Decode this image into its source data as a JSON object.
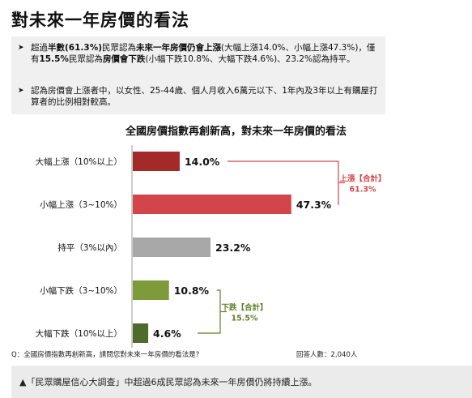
{
  "title": "對未來一年房價的看法",
  "summary": {
    "b1": {
      "arrow": "➤",
      "p1": "超過",
      "k1": "半數(61.3%)",
      "p2": "民眾認為",
      "k2": "未來一年房價仍會上漲",
      "p3": "(大幅上漲14.0%、小幅上漲47.3%)，僅有",
      "k3": "15.5%",
      "p4": "民眾認為",
      "k4": "房價會下跌",
      "p5": "(小幅下跌10.8%、大幅下跌4.6%)、23.2%認為持平。"
    },
    "b2": {
      "arrow": "➤",
      "text": "認為房價會上漲者中，以女性、25-44歲、個人月收入6萬元以下、1年內及3年以上有購屋打算者的比例相對較高。"
    }
  },
  "chart_data": {
    "type": "bar",
    "orientation": "horizontal",
    "title": "全國房價指數再創新高，對未來一年房價的看法",
    "categories": [
      "大幅上漲（10%以上）",
      "小幅上漲（3~10%）",
      "持平（3%以內）",
      "小幅下跌（3~10%）",
      "大幅下跌（10%以上）"
    ],
    "values": [
      14.0,
      47.3,
      23.2,
      10.8,
      4.6
    ],
    "value_labels": [
      "14.0%",
      "47.3%",
      "23.2%",
      "10.8%",
      "4.6%"
    ],
    "colors": [
      "#a32a28",
      "#d2454a",
      "#a8a8a8",
      "#7e9a3a",
      "#4f6a2a"
    ],
    "xlim": [
      0,
      50
    ],
    "grid": false,
    "annotations": [
      {
        "label": "上漲【合計】",
        "value": "61.3%",
        "spans": [
          0,
          1
        ],
        "color": "#d2454a"
      },
      {
        "label": "下跌【合計】",
        "value": "15.5%",
        "spans": [
          3,
          4
        ],
        "color": "#5f7f2a"
      }
    ]
  },
  "footnote": {
    "question": "Q：全國房價指數再創新高，請問您對未來一年房價的看法是?",
    "sample": "回答人數：2,040人"
  },
  "caption": "▲「民眾購屋信心大調查」中超過6成民眾認為未來一年房價仍將持續上漲。"
}
